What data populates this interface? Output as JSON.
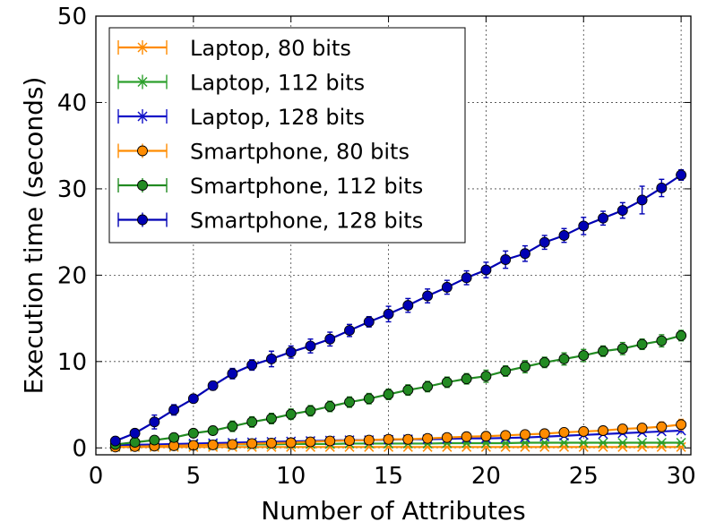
{
  "chart_data": {
    "type": "line",
    "title": "",
    "xlabel": "Number of Attributes",
    "ylabel": "Execution time (seconds)",
    "xlim": [
      0,
      30.5
    ],
    "ylim": [
      -0.8,
      50
    ],
    "xticks": [
      "0",
      "5",
      "10",
      "15",
      "20",
      "25",
      "30"
    ],
    "yticks": [
      "0",
      "10",
      "20",
      "30",
      "40",
      "50"
    ],
    "grid": true,
    "legend_position": "top-left",
    "x": [
      1,
      2,
      3,
      4,
      5,
      6,
      7,
      8,
      9,
      10,
      11,
      12,
      13,
      14,
      15,
      16,
      17,
      18,
      19,
      20,
      21,
      22,
      23,
      24,
      25,
      26,
      27,
      28,
      29,
      30
    ],
    "series": [
      {
        "name": "Laptop, 80 bits",
        "color": "#ff8c00",
        "marker": "x",
        "values": [
          0.1,
          0.1,
          0.1,
          0.1,
          0.1,
          0.1,
          0.1,
          0.1,
          0.1,
          0.1,
          0.1,
          0.1,
          0.1,
          0.1,
          0.1,
          0.1,
          0.1,
          0.1,
          0.1,
          0.1,
          0.1,
          0.1,
          0.1,
          0.1,
          0.1,
          0.1,
          0.1,
          0.1,
          0.1,
          0.1
        ],
        "errors": [
          0.05,
          0.05,
          0.05,
          0.05,
          0.05,
          0.05,
          0.05,
          0.05,
          0.05,
          0.05,
          0.05,
          0.05,
          0.05,
          0.05,
          0.05,
          0.05,
          0.05,
          0.05,
          0.05,
          0.05,
          0.05,
          0.05,
          0.05,
          0.05,
          0.05,
          0.05,
          0.05,
          0.05,
          0.05,
          0.05
        ]
      },
      {
        "name": "Laptop, 112 bits",
        "color": "#2ca02c",
        "marker": "x",
        "values": [
          0.2,
          0.25,
          0.3,
          0.3,
          0.35,
          0.35,
          0.4,
          0.4,
          0.4,
          0.45,
          0.45,
          0.45,
          0.5,
          0.5,
          0.5,
          0.5,
          0.5,
          0.55,
          0.55,
          0.55,
          0.55,
          0.6,
          0.6,
          0.6,
          0.6,
          0.6,
          0.6,
          0.6,
          0.6,
          0.6
        ],
        "errors": [
          0.1,
          0.1,
          0.1,
          0.1,
          0.1,
          0.1,
          0.1,
          0.1,
          0.1,
          0.1,
          0.1,
          0.1,
          0.1,
          0.1,
          0.1,
          0.1,
          0.1,
          0.1,
          0.1,
          0.1,
          0.1,
          0.1,
          0.1,
          0.1,
          0.1,
          0.1,
          0.1,
          0.1,
          0.1,
          0.1
        ]
      },
      {
        "name": "Laptop, 128 bits",
        "color": "#1010c8",
        "marker": "x",
        "values": [
          0.3,
          0.35,
          0.4,
          0.45,
          0.5,
          0.55,
          0.6,
          0.65,
          0.7,
          0.75,
          0.8,
          0.85,
          0.9,
          0.9,
          0.95,
          1.0,
          1.0,
          1.05,
          1.1,
          1.1,
          1.15,
          1.2,
          1.3,
          1.4,
          1.5,
          1.6,
          1.7,
          1.8,
          1.9,
          2.0
        ],
        "errors": [
          0.15,
          0.15,
          0.15,
          0.15,
          0.15,
          0.15,
          0.15,
          0.15,
          0.15,
          0.15,
          0.15,
          0.15,
          0.15,
          0.15,
          0.15,
          0.15,
          0.15,
          0.15,
          0.15,
          0.15,
          0.15,
          0.15,
          0.15,
          0.15,
          0.15,
          0.15,
          0.15,
          0.15,
          0.15,
          0.15
        ]
      },
      {
        "name": "Smartphone, 80 bits",
        "color": "#ff8c00",
        "marker": "o",
        "values": [
          0.1,
          0.15,
          0.2,
          0.25,
          0.3,
          0.35,
          0.4,
          0.5,
          0.55,
          0.6,
          0.7,
          0.8,
          0.85,
          0.9,
          1.0,
          1.0,
          1.1,
          1.2,
          1.3,
          1.35,
          1.45,
          1.55,
          1.65,
          1.8,
          1.9,
          2.0,
          2.2,
          2.3,
          2.45,
          2.7
        ],
        "errors": [
          0.2,
          0.2,
          0.2,
          0.2,
          0.2,
          0.25,
          0.25,
          0.25,
          0.25,
          0.3,
          0.3,
          0.3,
          0.3,
          0.3,
          0.3,
          0.35,
          0.35,
          0.35,
          0.35,
          0.35,
          0.4,
          0.4,
          0.4,
          0.4,
          0.45,
          0.45,
          0.5,
          0.5,
          0.55,
          0.6
        ]
      },
      {
        "name": "Smartphone, 112 bits",
        "color": "#228b22",
        "marker": "o",
        "values": [
          0.4,
          0.65,
          0.9,
          1.2,
          1.7,
          2.0,
          2.5,
          3.0,
          3.4,
          3.9,
          4.3,
          4.8,
          5.3,
          5.7,
          6.2,
          6.7,
          7.1,
          7.6,
          8.0,
          8.3,
          8.9,
          9.4,
          9.9,
          10.3,
          10.7,
          11.2,
          11.5,
          12.0,
          12.4,
          13.0
        ],
        "errors": [
          0.3,
          0.3,
          0.4,
          0.4,
          0.4,
          0.5,
          0.6,
          0.6,
          0.6,
          0.6,
          0.6,
          0.6,
          0.6,
          0.6,
          0.6,
          0.6,
          0.6,
          0.6,
          0.6,
          0.7,
          0.6,
          0.7,
          0.6,
          0.7,
          0.7,
          0.6,
          0.7,
          0.6,
          0.7,
          0.6
        ]
      },
      {
        "name": "Smartphone, 128 bits",
        "color": "#0000b4",
        "marker": "o",
        "values": [
          0.8,
          1.7,
          3.0,
          4.4,
          5.7,
          7.2,
          8.6,
          9.6,
          10.3,
          11.1,
          11.8,
          12.6,
          13.6,
          14.6,
          15.5,
          16.5,
          17.6,
          18.6,
          19.7,
          20.6,
          21.8,
          22.5,
          23.8,
          24.6,
          25.7,
          26.6,
          27.5,
          28.7,
          30.1,
          31.6
        ],
        "errors": [
          0.3,
          0.3,
          0.8,
          0.6,
          0.4,
          0.5,
          0.6,
          0.6,
          0.9,
          0.7,
          0.8,
          0.8,
          0.7,
          0.6,
          0.9,
          0.8,
          0.8,
          0.8,
          0.8,
          0.9,
          1.0,
          0.9,
          0.8,
          0.8,
          1.0,
          0.8,
          0.9,
          1.6,
          1.0,
          0.6
        ]
      }
    ]
  }
}
